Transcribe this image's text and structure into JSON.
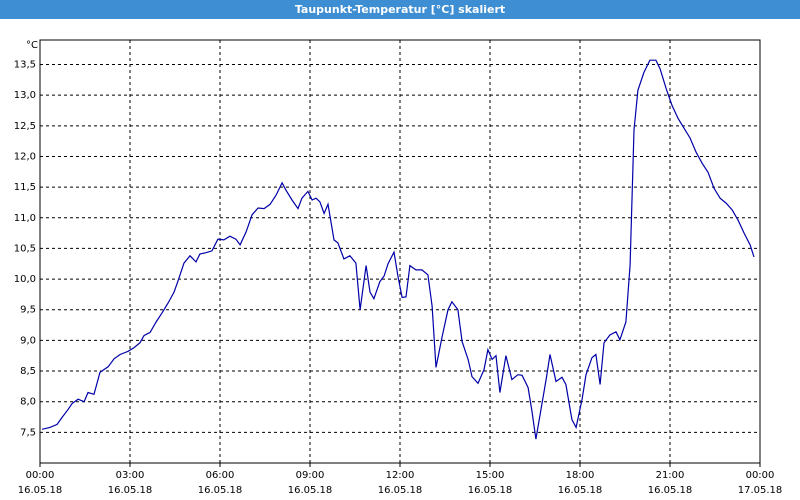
{
  "chart_data": {
    "type": "line",
    "title": "Taupunkt-Temperatur [°C] skaliert",
    "ylabel": "°C",
    "x": [
      0.07,
      0.33,
      0.57,
      0.73,
      0.93,
      1.07,
      1.27,
      1.47,
      1.6,
      1.8,
      2,
      2.27,
      2.47,
      2.67,
      2.93,
      3.13,
      3.33,
      3.47,
      3.67,
      3.87,
      4.07,
      4.27,
      4.47,
      4.6,
      4.8,
      5,
      5.2,
      5.33,
      5.53,
      5.73,
      5.93,
      6.13,
      6.33,
      6.53,
      6.67,
      6.87,
      7.07,
      7.27,
      7.47,
      7.67,
      7.87,
      8.07,
      8.2,
      8.4,
      8.6,
      8.73,
      8.93,
      9.07,
      9.2,
      9.33,
      9.47,
      9.6,
      9.8,
      9.93,
      10.13,
      10.33,
      10.53,
      10.67,
      10.87,
      11,
      11.13,
      11.33,
      11.47,
      11.6,
      11.8,
      11.93,
      12.07,
      12.2,
      12.33,
      12.53,
      12.73,
      12.93,
      13.07,
      13.2,
      13.4,
      13.6,
      13.73,
      13.93,
      14.07,
      14.27,
      14.4,
      14.6,
      14.8,
      14.93,
      15.07,
      15.2,
      15.33,
      15.53,
      15.73,
      15.93,
      16.07,
      16.27,
      16.4,
      16.53,
      16.73,
      16.87,
      17,
      17.2,
      17.4,
      17.53,
      17.73,
      17.87,
      18.07,
      18.2,
      18.4,
      18.53,
      18.67,
      18.8,
      19,
      19.2,
      19.33,
      19.53,
      19.67,
      19.8,
      19.93,
      20.13,
      20.33,
      20.53,
      20.67,
      20.87,
      21.07,
      21.27,
      21.47,
      21.67,
      21.87,
      22.07,
      22.27,
      22.47,
      22.67,
      22.87,
      23.07,
      23.27,
      23.47,
      23.67,
      23.8
    ],
    "values": [
      7.55,
      7.58,
      7.63,
      7.74,
      7.87,
      7.97,
      8.04,
      8.0,
      8.15,
      8.12,
      8.48,
      8.57,
      8.7,
      8.77,
      8.82,
      8.88,
      8.96,
      9.08,
      9.13,
      9.3,
      9.45,
      9.61,
      9.79,
      9.97,
      10.26,
      10.38,
      10.28,
      10.41,
      10.43,
      10.46,
      10.65,
      10.64,
      10.7,
      10.65,
      10.56,
      10.77,
      11.05,
      11.16,
      11.15,
      11.22,
      11.37,
      11.57,
      11.45,
      11.29,
      11.15,
      11.32,
      11.43,
      11.29,
      11.32,
      11.26,
      11.07,
      11.22,
      10.64,
      10.59,
      10.33,
      10.38,
      10.26,
      9.5,
      10.22,
      9.79,
      9.68,
      9.96,
      10.05,
      10.25,
      10.44,
      10.05,
      9.7,
      9.71,
      10.22,
      10.15,
      10.15,
      10.07,
      9.56,
      8.56,
      9.05,
      9.5,
      9.63,
      9.5,
      8.98,
      8.69,
      8.41,
      8.3,
      8.52,
      8.85,
      8.69,
      8.75,
      8.15,
      8.75,
      8.36,
      8.44,
      8.43,
      8.23,
      7.84,
      7.39,
      7.96,
      8.36,
      8.77,
      8.33,
      8.4,
      8.28,
      7.71,
      7.58,
      8.04,
      8.44,
      8.72,
      8.77,
      8.28,
      8.96,
      9.09,
      9.14,
      9.01,
      9.3,
      10.23,
      12.43,
      13.08,
      13.37,
      13.57,
      13.57,
      13.43,
      13.11,
      12.83,
      12.62,
      12.46,
      12.3,
      12.07,
      11.89,
      11.74,
      11.48,
      11.32,
      11.24,
      11.13,
      10.96,
      10.75,
      10.56,
      10.36
    ],
    "color": "#0000a8",
    "xlim": [
      0,
      24
    ],
    "xticks": [
      {
        "value": 0,
        "label": "00:00"
      },
      {
        "value": 3,
        "label": "03:00"
      },
      {
        "value": 6,
        "label": "06:00"
      },
      {
        "value": 9,
        "label": "09:00"
      },
      {
        "value": 12,
        "label": "12:00"
      },
      {
        "value": 15,
        "label": "15:00"
      },
      {
        "value": 18,
        "label": "18:00"
      },
      {
        "value": 21,
        "label": "21:00"
      },
      {
        "value": 24,
        "label": "00:00"
      }
    ],
    "xtick_dates": [
      "16.05.18",
      "16.05.18",
      "16.05.18",
      "16.05.18",
      "16.05.18",
      "16.05.18",
      "16.05.18",
      "16.05.18",
      "17.05.18"
    ],
    "ylim": [
      7.0,
      13.9
    ],
    "yticks": [
      {
        "value": 7.5,
        "label": "7,5"
      },
      {
        "value": 8,
        "label": "8,0"
      },
      {
        "value": 8.5,
        "label": "8,5"
      },
      {
        "value": 9,
        "label": "9,0"
      },
      {
        "value": 9.5,
        "label": "9,5"
      },
      {
        "value": 10,
        "label": "10,0"
      },
      {
        "value": 10.5,
        "label": "10,5"
      },
      {
        "value": 11,
        "label": "11,0"
      },
      {
        "value": 11.5,
        "label": "11,5"
      },
      {
        "value": 12,
        "label": "12,0"
      },
      {
        "value": 12.5,
        "label": "12,5"
      },
      {
        "value": 13,
        "label": "13,0"
      },
      {
        "value": 13.5,
        "label": "13,5"
      }
    ],
    "grid": true
  }
}
